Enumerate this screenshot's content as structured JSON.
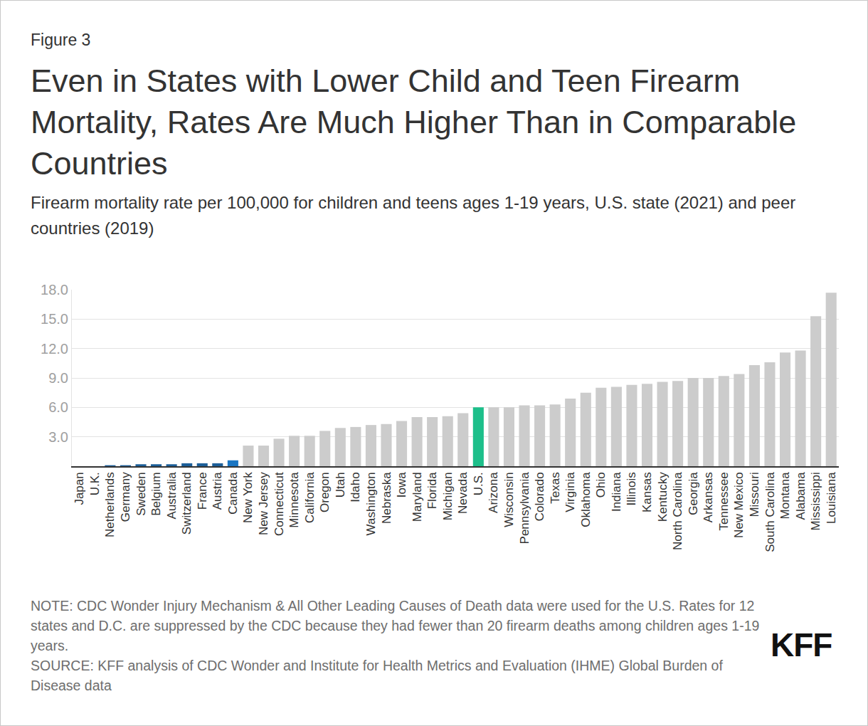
{
  "figure_label": "Figure 3",
  "note": "NOTE: CDC Wonder Injury Mechanism & All Other Leading Causes of Death data were used for the U.S. Rates for 12 states and D.C. are suppressed by the CDC because they had fewer than 20 firearm deaths among children ages 1-19 years.",
  "source": "SOURCE: KFF analysis of CDC Wonder and Institute for Health Metrics and Evaluation (IHME) Global Burden of Disease data",
  "logo": "KFF",
  "chart_data": {
    "type": "bar",
    "title": "Even in States with Lower Child and Teen Firearm Mortality, Rates Are Much Higher Than in Comparable Countries",
    "subtitle": "Firearm mortality rate per 100,000 for children and teens ages 1-19 years, U.S. state (2021) and peer countries (2019)",
    "categories": [
      "Japan",
      "U.K.",
      "Netherlands",
      "Germany",
      "Sweden",
      "Belgium",
      "Australia",
      "Switzerland",
      "France",
      "Austria",
      "Canada",
      "New York",
      "New Jersey",
      "Connecticut",
      "Minnesota",
      "California",
      "Oregon",
      "Utah",
      "Idaho",
      "Washington",
      "Nebraska",
      "Iowa",
      "Maryland",
      "Florida",
      "Michigan",
      "Nevada",
      "U.S.",
      "Arizona",
      "Wisconsin",
      "Pennsylvania",
      "Colorado",
      "Texas",
      "Virginia",
      "Oklahoma",
      "Ohio",
      "Indiana",
      "Illinois",
      "Kansas",
      "Kentucky",
      "North Carolina",
      "Georgia",
      "Arkansas",
      "Tennessee",
      "New Mexico",
      "Missouri",
      "South Carolina",
      "Montana",
      "Alabama",
      "Mississippi",
      "Louisiana"
    ],
    "values": [
      0.0,
      0.0,
      0.1,
      0.1,
      0.2,
      0.2,
      0.2,
      0.3,
      0.3,
      0.3,
      0.6,
      2.1,
      2.1,
      2.8,
      3.1,
      3.1,
      3.6,
      3.9,
      4.0,
      4.2,
      4.3,
      4.6,
      5.0,
      5.0,
      5.1,
      5.4,
      6.0,
      6.0,
      6.0,
      6.2,
      6.2,
      6.3,
      6.9,
      7.5,
      8.0,
      8.1,
      8.3,
      8.4,
      8.6,
      8.7,
      9.0,
      9.0,
      9.2,
      9.4,
      10.3,
      10.6,
      11.6,
      11.8,
      15.3,
      17.7
    ],
    "colors": [
      "#1d5f99",
      "#1d5f99",
      "#1d5f99",
      "#1d5f99",
      "#1d5f99",
      "#1d5f99",
      "#1d5f99",
      "#1d5f99",
      "#1d5f99",
      "#1d5f99",
      "#1a75c2",
      "#cccccc",
      "#cccccc",
      "#cccccc",
      "#cccccc",
      "#cccccc",
      "#cccccc",
      "#cccccc",
      "#cccccc",
      "#cccccc",
      "#cccccc",
      "#cccccc",
      "#cccccc",
      "#cccccc",
      "#cccccc",
      "#cccccc",
      "#1dbf8a",
      "#cccccc",
      "#cccccc",
      "#cccccc",
      "#cccccc",
      "#cccccc",
      "#cccccc",
      "#cccccc",
      "#cccccc",
      "#cccccc",
      "#cccccc",
      "#cccccc",
      "#cccccc",
      "#cccccc",
      "#cccccc",
      "#cccccc",
      "#cccccc",
      "#cccccc",
      "#cccccc",
      "#cccccc",
      "#cccccc",
      "#cccccc",
      "#cccccc",
      "#cccccc"
    ],
    "ylim": [
      0,
      18
    ],
    "yticks": [
      {
        "value": 3,
        "label": "3.0"
      },
      {
        "value": 6,
        "label": "6.0"
      },
      {
        "value": 9,
        "label": "9.0"
      },
      {
        "value": 12,
        "label": "12.0"
      },
      {
        "value": 15,
        "label": "15.0"
      },
      {
        "value": 18,
        "label": "18.0"
      }
    ],
    "grid": true
  }
}
